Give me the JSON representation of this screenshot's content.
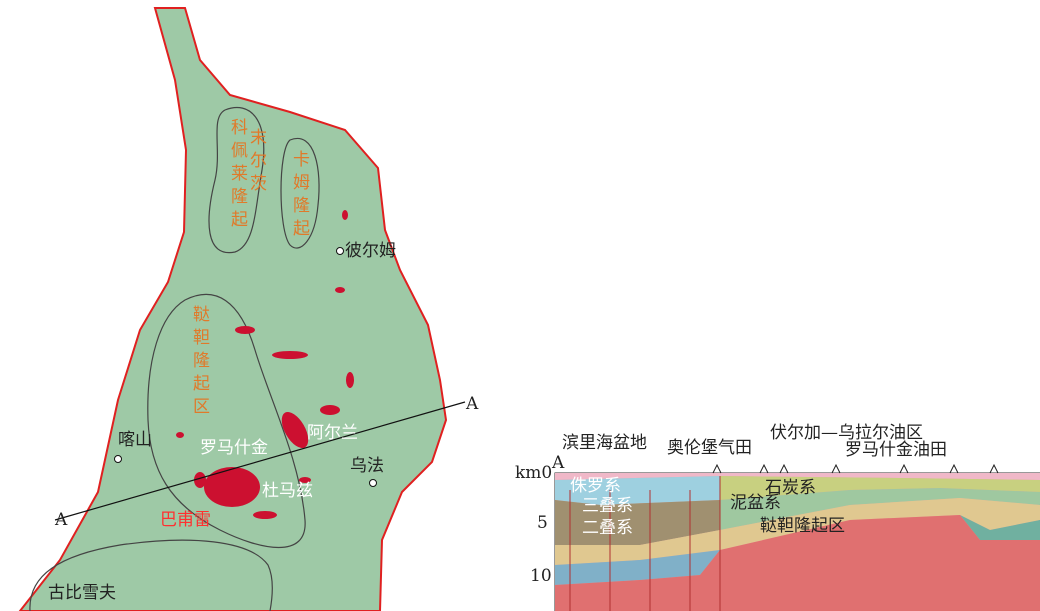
{
  "map": {
    "labels": [
      "科佩莱隆起",
      "末尔茨",
      "卡姆隆起",
      "彼尔姆",
      "鞑靼隆起区",
      "喀山",
      "罗马什金",
      "阿尔兰",
      "杜马兹",
      "乌法",
      "巴甫雷",
      "古比雪夫",
      "A",
      "A"
    ]
  },
  "section": {
    "labels": [
      "滨里海盆地",
      "奥伦堡气田",
      "伏尔加—乌拉尔油区",
      "罗马什金油田",
      "A",
      "侏罗系",
      "三叠系",
      "二叠系",
      "石炭系",
      "泥盆系",
      "鞑靼隆起区"
    ],
    "depth_labels": [
      "km0",
      "5",
      "10"
    ]
  }
}
